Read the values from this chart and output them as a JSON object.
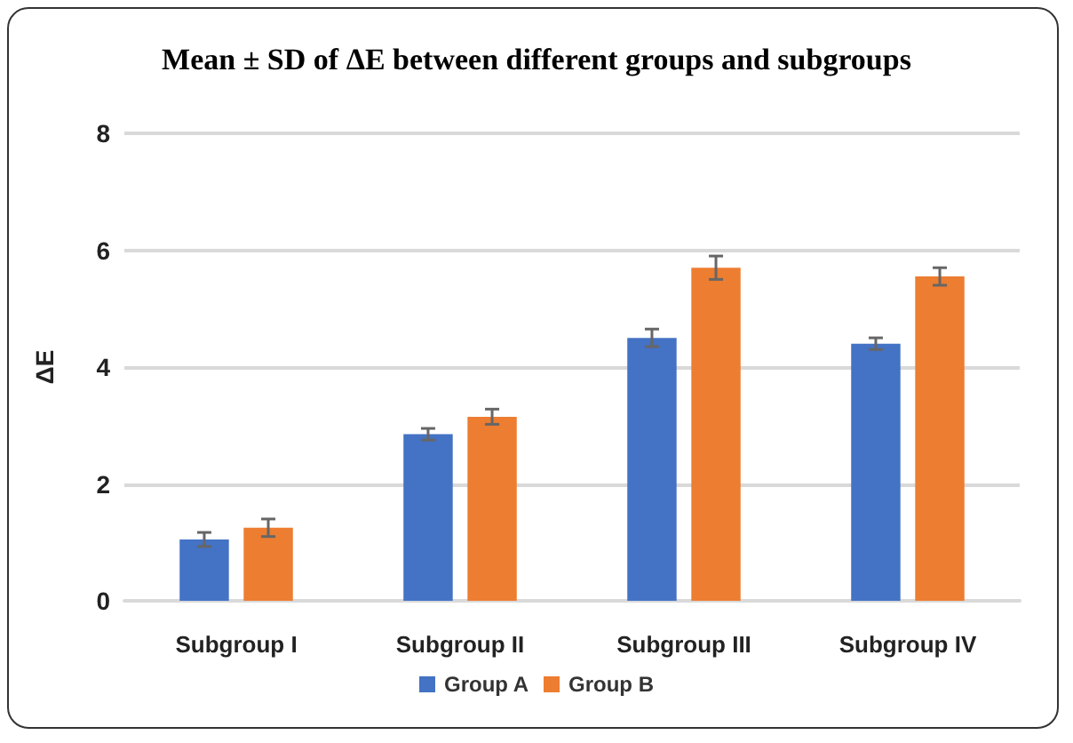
{
  "chart_data": {
    "type": "bar",
    "title": "Mean ± SD of ΔE between different groups and subgroups",
    "ylabel": "ΔE",
    "categories": [
      "Subgroup I",
      "Subgroup II",
      "Subgroup III",
      "Subgroup IV"
    ],
    "series": [
      {
        "name": "Group A",
        "color": "#4472c4",
        "values": [
          1.05,
          2.85,
          4.5,
          4.4
        ],
        "errors": [
          0.12,
          0.1,
          0.15,
          0.1
        ]
      },
      {
        "name": "Group B",
        "color": "#ed7d31",
        "values": [
          1.25,
          3.15,
          5.7,
          5.55
        ],
        "errors": [
          0.15,
          0.13,
          0.2,
          0.15
        ]
      }
    ],
    "ylim": [
      0,
      8
    ],
    "yticks": [
      0,
      2,
      4,
      6,
      8
    ],
    "grid": "y",
    "legend": "bottom"
  }
}
